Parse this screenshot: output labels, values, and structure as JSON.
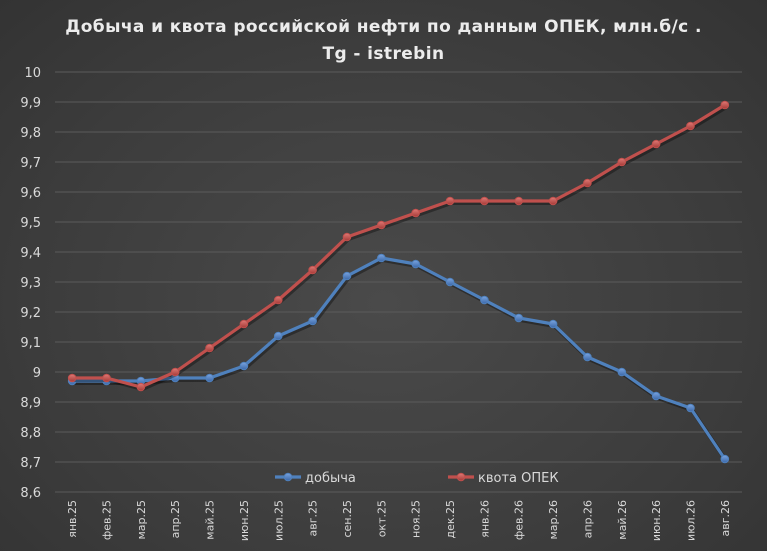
{
  "chart_data": {
    "type": "line",
    "title_line1": "Добыча и квота российской нефти по данным ОПЕК, млн.б/с .",
    "title_line2": "Tg - istrebin",
    "xlabel": "",
    "ylabel": "",
    "ylim": [
      8.6,
      10
    ],
    "yticks": [
      "8,6",
      "8,7",
      "8,8",
      "8,9",
      "9",
      "9,1",
      "9,2",
      "9,3",
      "9,4",
      "9,5",
      "9,6",
      "9,7",
      "9,8",
      "9,9",
      "10"
    ],
    "grid": true,
    "legend_position": "bottom",
    "categories": [
      "янв.25",
      "фев.25",
      "мар.25",
      "апр.25",
      "май.25",
      "июн.25",
      "июл.25",
      "авг.25",
      "сен.25",
      "окт.25",
      "ноя.25",
      "дек.25",
      "янв.26",
      "фев.26",
      "мар.26",
      "апр.26",
      "май.26",
      "июн.26",
      "июл.26",
      "авг.26"
    ],
    "series": [
      {
        "name": "добыча",
        "color": "#4f81bd",
        "values": [
          8.97,
          8.97,
          8.97,
          8.98,
          8.98,
          9.02,
          9.12,
          9.17,
          9.32,
          9.38,
          9.36,
          9.3,
          9.24,
          9.18,
          9.16,
          9.05,
          9.0,
          8.92,
          8.88,
          8.71
        ]
      },
      {
        "name": "квота ОПЕК",
        "color": "#c0504d",
        "values": [
          8.98,
          8.98,
          8.95,
          9.0,
          9.08,
          9.16,
          9.24,
          9.34,
          9.45,
          9.49,
          9.53,
          9.57,
          9.57,
          9.57,
          9.57,
          9.63,
          9.7,
          9.76,
          9.82,
          9.89
        ]
      }
    ]
  }
}
